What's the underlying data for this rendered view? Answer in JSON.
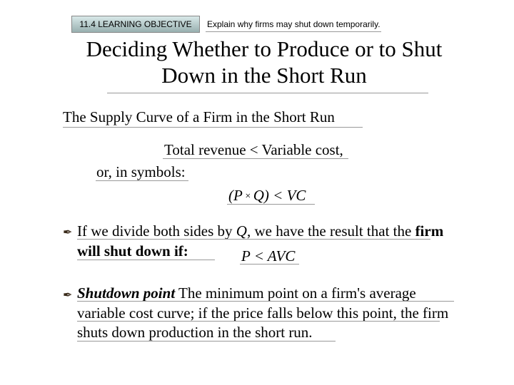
{
  "learning_objective": {
    "box_label": "11.4  LEARNING OBJECTIVE",
    "text": "Explain why firms may shut down temporarily."
  },
  "title": "Deciding Whether to Produce or to Shut Down in the Short Run",
  "subtitle": "The Supply Curve of a Firm in the Short Run",
  "line1": "Total revenue < Variable cost,",
  "line2": "or, in symbols:",
  "formula1": {
    "lparen": "(",
    "P": "P",
    "times": " × ",
    "Q": "Q",
    "rparen": ") < ",
    "VC": "VC"
  },
  "para1": {
    "text1": "If we divide both sides by ",
    "Q": "Q",
    "text2": ", we have the result that the ",
    "bold": "firm will shut down if:"
  },
  "formula2": {
    "P": "P",
    "lt": " < ",
    "AVC": "AVC"
  },
  "para2": {
    "term": "Shutdown point",
    "def": "  The minimum point on a firm's average variable cost curve; if the price falls below this point, the firm shuts down production in the short run."
  },
  "bullet": "✒"
}
